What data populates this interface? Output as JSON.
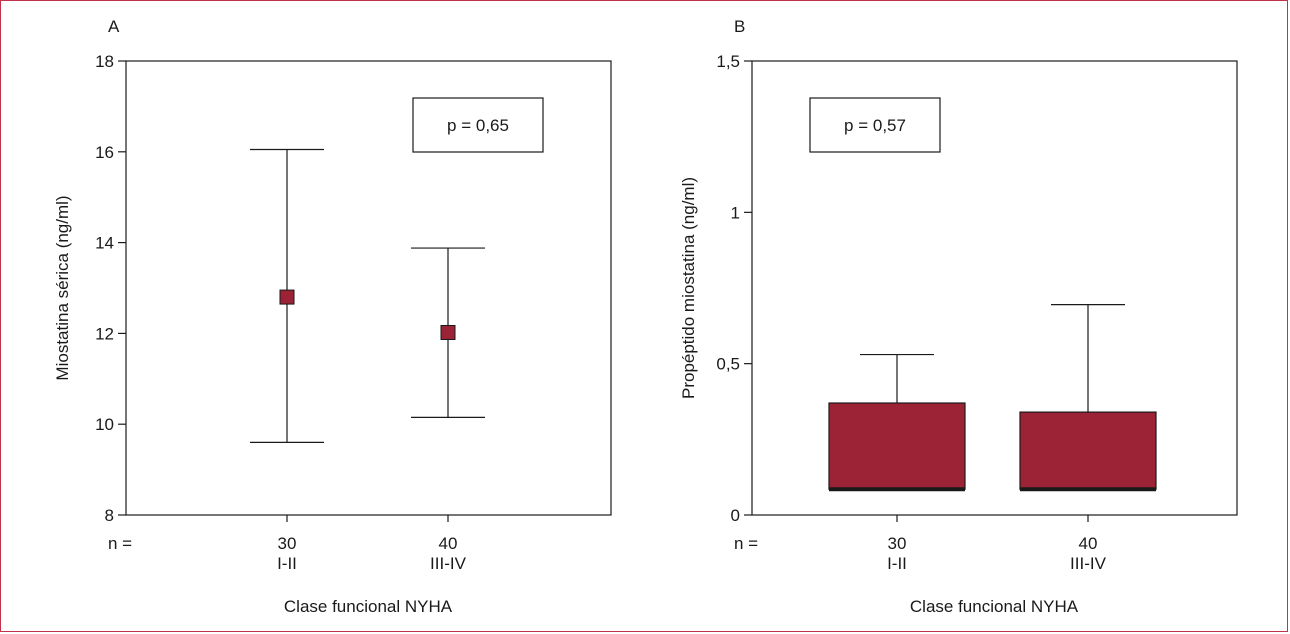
{
  "chart_data": [
    {
      "panel": "A",
      "type": "errorbar",
      "ylabel": "Miostatina sérica (ng/ml)",
      "xlabel": "Clase funcional NYHA",
      "ylim": [
        8,
        18
      ],
      "yticks": [
        8,
        10,
        12,
        14,
        16,
        18
      ],
      "n_label": "n =",
      "categories": [
        {
          "n": "30",
          "label": "I-II",
          "mean": 12.8,
          "low": 9.6,
          "high": 16.05
        },
        {
          "n": "40",
          "label": "III-IV",
          "mean": 12.02,
          "low": 10.15,
          "high": 13.88
        }
      ],
      "annotation": "p = 0,65",
      "marker_color": "#9b2335"
    },
    {
      "panel": "B",
      "type": "bar",
      "ylabel": "Propéptido miostatina (ng/ml)",
      "xlabel": "Clase funcional NYHA",
      "ylim": [
        0,
        1.5
      ],
      "yticks": [
        0,
        0.5,
        1,
        1.5
      ],
      "ytick_labels": [
        "0",
        "0,5",
        "1",
        "1,5"
      ],
      "n_label": "n =",
      "categories": [
        {
          "n": "30",
          "label": "I-II",
          "low": 0.085,
          "value": 0.37,
          "whisker": 0.53
        },
        {
          "n": "40",
          "label": "III-IV",
          "low": 0.085,
          "value": 0.34,
          "whisker": 0.695
        }
      ],
      "annotation": "p = 0,57",
      "bar_color": "#9b2335"
    }
  ]
}
